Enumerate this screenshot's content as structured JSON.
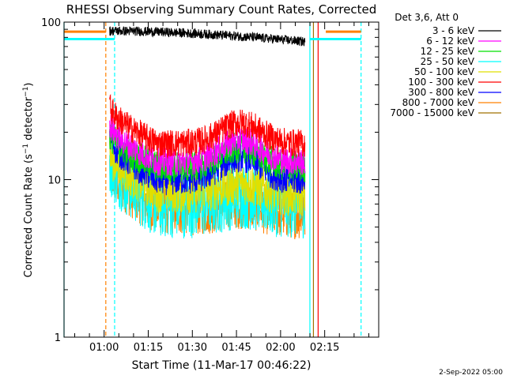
{
  "chart_data": {
    "type": "line",
    "title": "RHESSI Observing Summary Count Rates, Corrected",
    "xlabel": "Start Time (11-Mar-17 00:46:22)",
    "ylabel": "Corrected Count Rate (s⁻¹ detector⁻¹)",
    "ylabel_parts": {
      "main": "Corrected Count Rate (s",
      "sup1": "−1",
      "mid": " detector",
      "sup2": "−1",
      "end": ")"
    },
    "yscale": "log",
    "ylim": [
      1,
      100
    ],
    "xlim_minutes": [
      0,
      107
    ],
    "x_tick_labels": [
      "01:00",
      "01:15",
      "01:30",
      "01:45",
      "02:00",
      "02:15"
    ],
    "x_tick_minutes": [
      13.63,
      28.63,
      43.63,
      58.63,
      73.63,
      88.63
    ],
    "y_tick_labels": [
      "1",
      "10",
      "100"
    ],
    "y_tick_values": [
      1,
      10,
      100
    ],
    "legend": {
      "header": "Det 3,6, Att 0",
      "entries": [
        {
          "label": "3 - 6 keV",
          "color": "#000000"
        },
        {
          "label": "6 - 12 keV",
          "color": "#ff00ff"
        },
        {
          "label": "12 - 25 keV",
          "color": "#00e000"
        },
        {
          "label": "25 - 50 keV",
          "color": "#00ffff"
        },
        {
          "label": "50 - 100 keV",
          "color": "#e0e000"
        },
        {
          "label": "100 - 300 keV",
          "color": "#ff0000"
        },
        {
          "label": "300 - 800 keV",
          "color": "#0000ff"
        },
        {
          "label": "800 - 7000 keV",
          "color": "#ff8000"
        },
        {
          "label": "7000 - 15000 keV",
          "color": "#a07000"
        }
      ]
    },
    "series_profiles": [
      {
        "color": "#ff0000",
        "start": 30,
        "dip": 17,
        "hump": 23,
        "end": 17,
        "noise": 0.09
      },
      {
        "color": "#ff00ff",
        "start": 23,
        "dip": 13,
        "hump": 18,
        "end": 13,
        "noise": 0.09
      },
      {
        "color": "#00e000",
        "start": 20,
        "dip": 12,
        "hump": 16,
        "end": 12,
        "noise": 0.1
      },
      {
        "color": "#0000ff",
        "start": 19,
        "dip": 10,
        "hump": 14,
        "end": 10,
        "noise": 0.1
      },
      {
        "color": "#e0e000",
        "start": 15,
        "dip": 8.5,
        "hump": 9.5,
        "end": 8,
        "noise": 0.14
      },
      {
        "color": "#00ffff",
        "start": 14,
        "dip": 7,
        "hump": 8,
        "end": 7,
        "noise": 0.22
      },
      {
        "color": "#ff8000",
        "start": 12,
        "dip": 6.5,
        "hump": 7,
        "end": 6,
        "noise": 0.16
      }
    ],
    "black_series": {
      "color": "#000000",
      "start": 88,
      "end": 75,
      "noise": 0.03,
      "x_start": 15.5,
      "x_end": 82
    },
    "colored_x_range": [
      15.5,
      82
    ],
    "hump_center_minute": 60,
    "dip_minute": 32,
    "vertical_lines": [
      {
        "x_minutes": 0,
        "color": "#00ffff",
        "style": "solid"
      },
      {
        "x_minutes": 14.2,
        "color": "#ff8000",
        "style": "dashed"
      },
      {
        "x_minutes": 17.2,
        "color": "#00ffff",
        "style": "dashed"
      },
      {
        "x_minutes": 83.6,
        "color": "#00ffff",
        "style": "solid"
      },
      {
        "x_minutes": 84.8,
        "color": "#a07000",
        "style": "solid"
      },
      {
        "x_minutes": 86.4,
        "color": "#ff0000",
        "style": "solid"
      },
      {
        "x_minutes": 101,
        "color": "#00ffff",
        "style": "dashed"
      }
    ],
    "horizontal_segments": [
      {
        "x_from_minutes": 0,
        "x_to_minutes": 14.2,
        "y": 87,
        "color": "#ff8000"
      },
      {
        "x_from_minutes": 0,
        "x_to_minutes": 17.2,
        "y": 78,
        "color": "#00ffff"
      },
      {
        "x_from_minutes": 83.6,
        "x_to_minutes": 101,
        "y": 78,
        "color": "#00ffff"
      },
      {
        "x_from_minutes": 89,
        "x_to_minutes": 101,
        "y": 87,
        "color": "#ff8000"
      }
    ]
  },
  "footer_date": "2-Sep-2022 05:00"
}
